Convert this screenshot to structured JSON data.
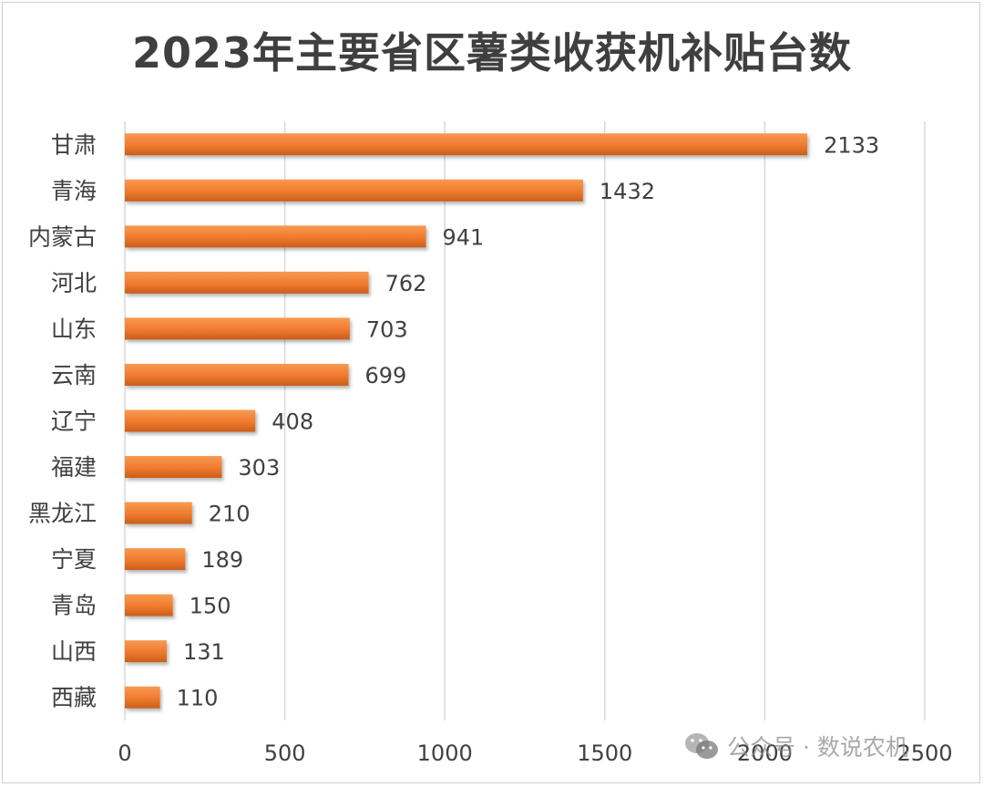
{
  "chart_data": {
    "type": "bar",
    "orientation": "horizontal",
    "title": "2023年主要省区薯类收获机补贴台数",
    "categories": [
      "甘肃",
      "青海",
      "内蒙古",
      "河北",
      "山东",
      "云南",
      "辽宁",
      "福建",
      "黑龙江",
      "宁夏",
      "青岛",
      "山西",
      "西藏"
    ],
    "values": [
      2133,
      1432,
      941,
      762,
      703,
      699,
      408,
      303,
      210,
      189,
      150,
      131,
      110
    ],
    "xlim": [
      0,
      2500
    ],
    "xticks": [
      0,
      500,
      1000,
      1500,
      2000,
      2500
    ],
    "grid": "vertical",
    "legend": "none",
    "colors": {
      "bar": "#f07a2d",
      "bar_highlight": "#f79a52",
      "bar_shadow": "#c95e1c",
      "grid": "#d9d9d9",
      "text": "#404040"
    }
  },
  "watermark": {
    "icon": "wechat-icon",
    "text": "公众号 · 数说农机"
  }
}
